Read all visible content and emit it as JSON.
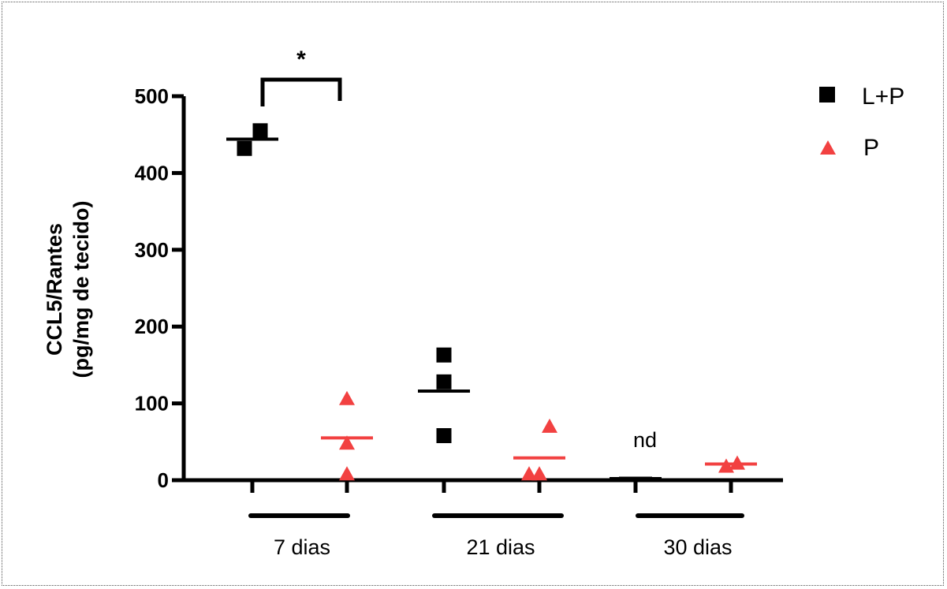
{
  "chart_data": {
    "type": "scatter",
    "ylabel_lines": [
      "CCL5/Rantes",
      "(pg/mg de tecido)"
    ],
    "ylim": [
      0,
      500
    ],
    "yticks": [
      0,
      100,
      200,
      300,
      400,
      500
    ],
    "groups": [
      "7 dias",
      "21 dias",
      "30 dias"
    ],
    "series": [
      {
        "name": "L+P",
        "color": "#000000",
        "marker": "square",
        "points": [
          {
            "group": "7 dias",
            "values": [
              432,
              455
            ],
            "mean": 444
          },
          {
            "group": "21 dias",
            "values": [
              58,
              128,
              163
            ],
            "mean": 116
          },
          {
            "group": "30 dias",
            "values": [
              2
            ],
            "mean": 2
          }
        ]
      },
      {
        "name": "P",
        "color": "#f24141",
        "marker": "triangle",
        "points": [
          {
            "group": "7 dias",
            "values": [
              8,
              48,
              106
            ],
            "mean": 55
          },
          {
            "group": "21 dias",
            "values": [
              8,
              8,
              70
            ],
            "mean": 29
          },
          {
            "group": "30 dias",
            "values": [
              18,
              22
            ],
            "mean": 21
          }
        ]
      }
    ],
    "annotations": {
      "significance": "*",
      "not_detected": "nd"
    },
    "legend_position": "top-right",
    "grid": false
  }
}
